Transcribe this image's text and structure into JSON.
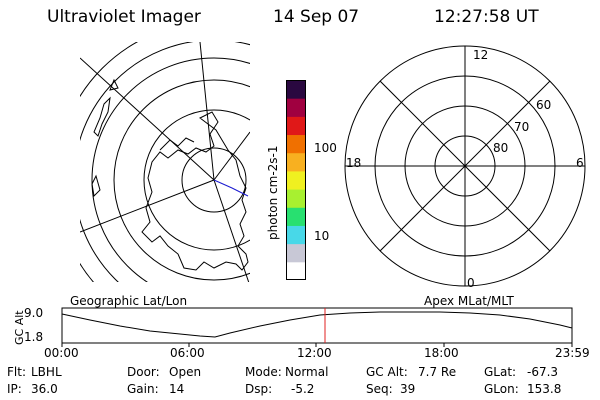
{
  "header": {
    "instrument": "Ultraviolet Imager",
    "date": "14 Sep 07",
    "time": "12:27:58 UT"
  },
  "colorbar": {
    "axis_label": "photon cm-2s-1",
    "ticks": [
      "100",
      "10"
    ],
    "colors": [
      "#ffffff",
      "#c8c8d6",
      "#48d8e8",
      "#28e070",
      "#a8f030",
      "#f0f020",
      "#f8b020",
      "#f07000",
      "#e01818",
      "#a00040",
      "#2a0840"
    ]
  },
  "map_left": {
    "caption": "Geographic Lat/Lon"
  },
  "map_right": {
    "caption": "Apex MLat/MLT",
    "mlt_labels": {
      "top": "12",
      "bottom": "0",
      "left": "18",
      "right": "6"
    },
    "lat_labels": [
      "60",
      "70",
      "80"
    ]
  },
  "altitude_plot": {
    "ylabel": "GC Alt",
    "yticks": [
      "9.0",
      "1.8"
    ],
    "xticks": [
      "00:00",
      "06:00",
      "12:00",
      "18:00",
      "23:59"
    ],
    "marker_time": "12:27:58",
    "marker_color": "#e02020"
  },
  "status": {
    "flt_label": "Flt:",
    "flt_value": "LBHL",
    "door_label": "Door:",
    "door_value": "Open",
    "mode_label": "Mode:",
    "mode_value": "Normal",
    "gcalt_label": "GC Alt:",
    "gcalt_value": "7.7 Re",
    "glat_label": "GLat:",
    "glat_value": "-67.3",
    "ip_label": "IP:",
    "ip_value": "36.0",
    "gain_label": "Gain:",
    "gain_value": "14",
    "dsp_label": "Dsp:",
    "dsp_value": "-5.2",
    "seq_label": "Seq:",
    "seq_value": "39",
    "glon_label": "GLon:",
    "glon_value": "153.8"
  }
}
